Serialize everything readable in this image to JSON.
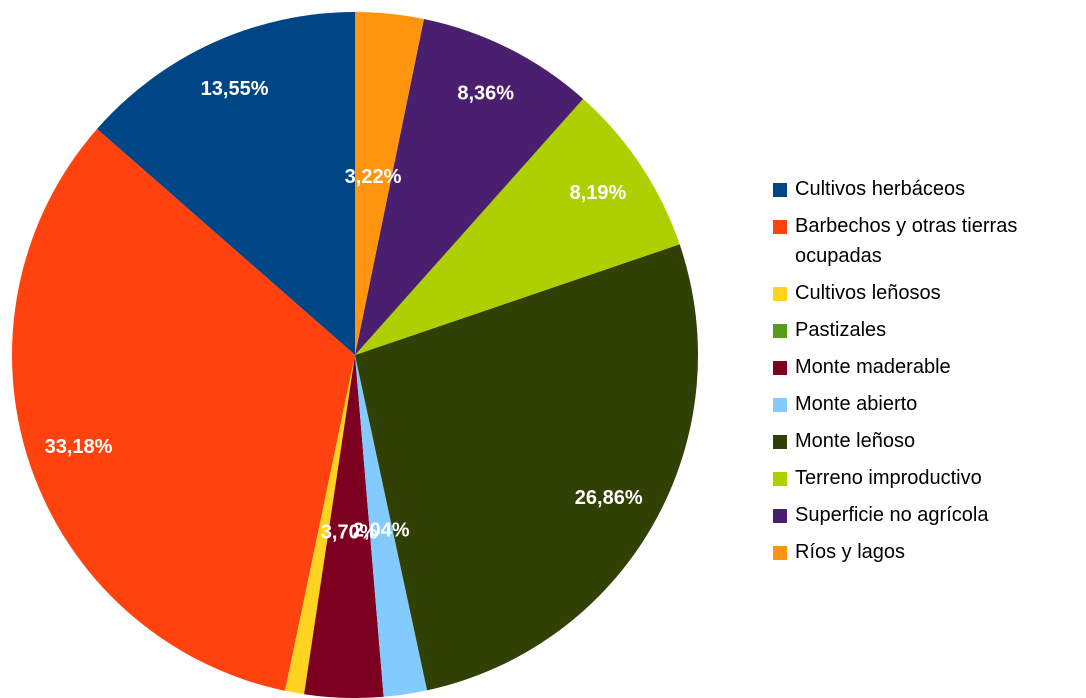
{
  "chart_data": {
    "type": "pie",
    "categories": [
      "Cultivos herbáceos",
      "Barbechos y otras tierras ocupadas",
      "Cultivos leñosos",
      "Pastizales",
      "Monte maderable",
      "Monte abierto",
      "Monte leñoso",
      "Terreno improductivo",
      "Superficie no agrícola",
      "Ríos y lagos"
    ],
    "values": [
      13.55,
      33.18,
      0.9,
      0,
      3.7,
      2.04,
      26.86,
      8.19,
      8.36,
      3.22
    ],
    "value_labels": [
      "13,55%",
      "33,18%",
      null,
      null,
      "3,70%",
      "2,04%",
      "26,86%",
      "8,19%",
      "8,36%",
      "3,22%"
    ],
    "colors": [
      "#004586",
      "#ff420e",
      "#ffd320",
      "#579d1c",
      "#7e0021",
      "#83caff",
      "#314004",
      "#aecf00",
      "#4b1f6f",
      "#ff950e"
    ],
    "legend": "right"
  }
}
